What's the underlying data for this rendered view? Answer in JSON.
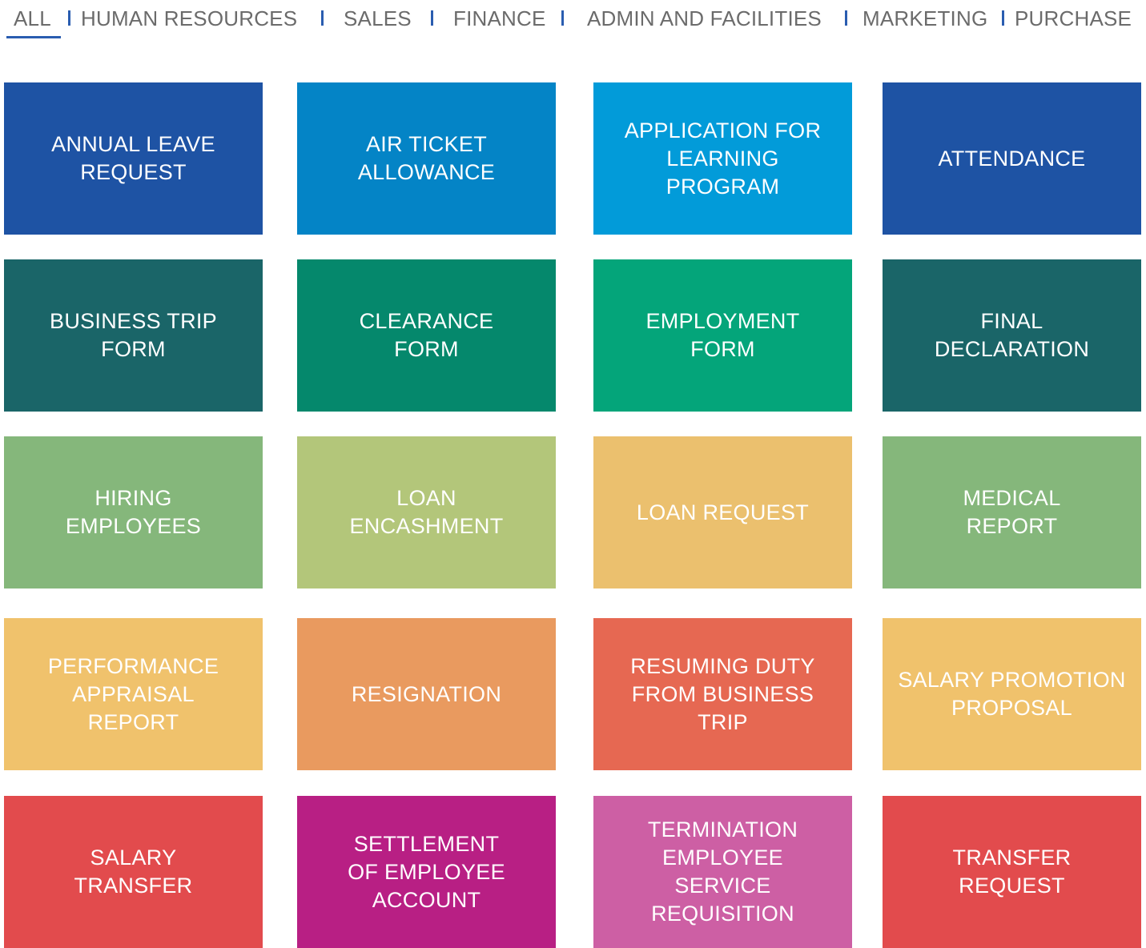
{
  "tabs": [
    {
      "label": "ALL",
      "active": true
    },
    {
      "label": "HUMAN RESOURCES",
      "active": false
    },
    {
      "label": "SALES",
      "active": false
    },
    {
      "label": "FINANCE",
      "active": false
    },
    {
      "label": "ADMIN AND FACILITIES",
      "active": false
    },
    {
      "label": "MARKETING",
      "active": false
    },
    {
      "label": "PURCHASE",
      "active": false
    }
  ],
  "accent_color": "#2a5db0",
  "tiles": [
    {
      "label": "ANNUAL LEAVE\nREQUEST",
      "color": "#1e53a4"
    },
    {
      "label": "AIR TICKET\nALLOWANCE",
      "color": "#0484c6"
    },
    {
      "label": "APPLICATION FOR\nLEARNING\nPROGRAM",
      "color": "#029bd9"
    },
    {
      "label": "ATTENDANCE",
      "color": "#1e53a4"
    },
    {
      "label": "BUSINESS TRIP\nFORM",
      "color": "#1a6568"
    },
    {
      "label": "CLEARANCE\nFORM",
      "color": "#05886c"
    },
    {
      "label": "EMPLOYMENT\nFORM",
      "color": "#04a57a"
    },
    {
      "label": "FINAL\nDECLARATION",
      "color": "#1a6568"
    },
    {
      "label": "HIRING\nEMPLOYEES",
      "color": "#85b77b"
    },
    {
      "label": "LOAN\nENCASHMENT",
      "color": "#b3c67a"
    },
    {
      "label": "LOAN REQUEST",
      "color": "#ebc06e"
    },
    {
      "label": "MEDICAL\nREPORT",
      "color": "#85b77b"
    },
    {
      "label": "PERFORMANCE\nAPPRAISAL\nREPORT",
      "color": "#f0c26c"
    },
    {
      "label": "RESIGNATION",
      "color": "#e99a5f"
    },
    {
      "label": "RESUMING DUTY\nFROM BUSINESS TRIP",
      "color": "#e66852"
    },
    {
      "label": "SALARY PROMOTION\nPROPOSAL",
      "color": "#f0c26c"
    },
    {
      "label": "SALARY\nTRANSFER",
      "color": "#e24b4d"
    },
    {
      "label": "SETTLEMENT\nOF EMPLOYEE\nACCOUNT",
      "color": "#b81f84"
    },
    {
      "label": "TERMINATION\nEMPLOYEE\nSERVICE\nREQUISITION",
      "color": "#cd5fa4"
    },
    {
      "label": "TRANSFER\nREQUEST",
      "color": "#e24b4d"
    }
  ]
}
